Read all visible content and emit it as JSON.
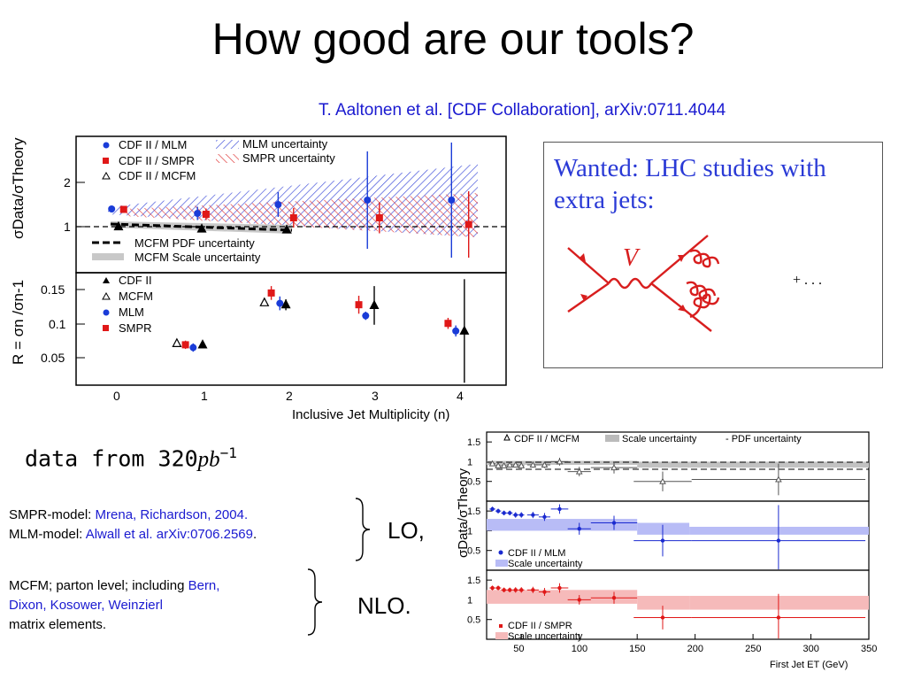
{
  "slide": {
    "title": "How good are our tools?",
    "citation": "T. Aaltonen et al. [CDF Collaboration], arXiv:0711.4044"
  },
  "wanted": {
    "text": "Wanted: LHC studies with extra jets:",
    "boson_label": "V",
    "more": "+ . . ."
  },
  "data_note": {
    "prefix": "data from 320",
    "unit": "pb",
    "exponent": "−1"
  },
  "models": {
    "smpr_label": "SMPR-model: ",
    "smpr_ref": "Mrena, Richardson, 2004.",
    "mlm_label": "MLM-model: ",
    "mlm_ref": "Alwall et al. arXiv:0706.2569",
    "mlm_end": ".",
    "lo": "LO,",
    "mcfm_label": "MCFM; parton level; including ",
    "mcfm_ref_1": "Bern,",
    "mcfm_ref_2": "Dixon, Kosower, Weinzierl",
    "mcfm_end": "matrix elements.",
    "nlo": "NLO."
  },
  "chart_data": [
    {
      "type": "scatter",
      "panel": "top",
      "ylabel": "σData/σTheory",
      "xlim": [
        -0.4,
        4.4
      ],
      "ylim": [
        0.2,
        2.9
      ],
      "yticks": [
        1,
        2
      ],
      "x": [
        0,
        1,
        2,
        3,
        4
      ],
      "reference_line": 1,
      "legend": [
        "CDF II / MLM",
        "CDF II / SMPR",
        "CDF II / MCFM",
        "MLM uncertainty",
        "SMPR uncertainty",
        "MCFM PDF uncertainty",
        "MCFM Scale uncertainty"
      ],
      "series": [
        {
          "name": "CDF II / MLM",
          "color": "#1a3cd8",
          "x": [
            -0.06,
            0.94,
            1.88,
            2.92,
            3.9
          ],
          "y": [
            1.4,
            1.3,
            1.5,
            1.6,
            1.6
          ],
          "err": [
            0.05,
            0.15,
            0.28,
            1.1,
            1.3
          ]
        },
        {
          "name": "CDF II / SMPR",
          "color": "#e01818",
          "x": [
            0.08,
            1.04,
            2.06,
            3.06,
            4.1
          ],
          "y": [
            1.39,
            1.28,
            1.2,
            1.2,
            1.05
          ],
          "err": [
            0.05,
            0.13,
            0.22,
            0.35,
            0.75
          ]
        },
        {
          "name": "CDF II / MCFM",
          "color": "#000000",
          "x": [
            0.02,
            0.99,
            1.98
          ],
          "y": [
            1.0,
            0.95,
            0.93
          ],
          "err": [
            0.03,
            0.05,
            0.05
          ]
        }
      ]
    },
    {
      "type": "scatter",
      "panel": "bottom",
      "ylabel": "R = σn /σn-1",
      "xlabel": "Inclusive Jet Multiplicity (n)",
      "xlim": [
        -0.4,
        4.4
      ],
      "ylim": [
        0.01,
        0.175
      ],
      "yticks": [
        0.05,
        0.1,
        0.15
      ],
      "xticks": [
        0,
        1,
        2,
        3,
        4
      ],
      "legend": [
        "CDF II",
        "MCFM",
        "MLM",
        "SMPR"
      ],
      "series": [
        {
          "name": "CDF II",
          "color": "#000000",
          "x": [
            1.0,
            1.97,
            3.0,
            4.05
          ],
          "y": [
            0.07,
            0.128,
            0.127,
            0.09
          ],
          "err": [
            0.005,
            0.008,
            0.028,
            0.075
          ]
        },
        {
          "name": "MCFM",
          "color": "#000000",
          "open": true,
          "x": [
            0.7,
            1.72
          ],
          "y": [
            0.072,
            0.131
          ],
          "err": [
            0,
            0
          ]
        },
        {
          "name": "MLM",
          "color": "#1a3cd8",
          "x": [
            0.89,
            1.9,
            2.9,
            3.95
          ],
          "y": [
            0.066,
            0.13,
            0.112,
            0.09
          ],
          "err": [
            0.006,
            0.01,
            0.006,
            0.008
          ]
        },
        {
          "name": "SMPR",
          "color": "#e01818",
          "x": [
            0.8,
            1.8,
            2.82,
            3.86
          ],
          "y": [
            0.07,
            0.145,
            0.128,
            0.101
          ],
          "err": [
            0.006,
            0.01,
            0.013,
            0.008
          ]
        }
      ]
    },
    {
      "type": "scatter",
      "panel": "right-1",
      "ylabel": "σData/σTheory",
      "xlim": [
        20,
        350
      ],
      "ylim": [
        0,
        1.75
      ],
      "yticks": [
        0.5,
        1,
        1.5
      ],
      "legend": [
        "CDF II / MCFM",
        "Scale uncertainty",
        "- PDF uncertainty"
      ],
      "series": [
        {
          "name": "CDF II / MCFM",
          "color": "#555555",
          "open": true,
          "x": [
            25,
            30,
            35,
            40,
            45,
            50,
            60,
            70,
            83,
            100,
            130,
            172,
            272
          ],
          "y": [
            0.95,
            0.9,
            0.9,
            0.92,
            0.92,
            0.9,
            0.92,
            0.92,
            1.0,
            0.75,
            0.85,
            0.5,
            0.55
          ],
          "err": [
            0.05,
            0.05,
            0.05,
            0.06,
            0.06,
            0.06,
            0.07,
            0.08,
            0.1,
            0.12,
            0.15,
            0.25,
            0.4
          ]
        }
      ]
    },
    {
      "type": "scatter",
      "panel": "right-2",
      "xlim": [
        20,
        350
      ],
      "ylim": [
        0,
        1.75
      ],
      "yticks": [
        0.5,
        1,
        1.5
      ],
      "legend": [
        "CDF II / MLM",
        "Scale uncertainty"
      ],
      "series": [
        {
          "name": "CDF II / MLM",
          "color": "#1a2ad0",
          "x": [
            25,
            30,
            35,
            40,
            45,
            50,
            60,
            70,
            83,
            100,
            130,
            172,
            272
          ],
          "y": [
            1.55,
            1.5,
            1.45,
            1.45,
            1.4,
            1.4,
            1.4,
            1.35,
            1.55,
            1.05,
            1.2,
            0.75,
            0.75
          ],
          "err": [
            0.06,
            0.06,
            0.06,
            0.06,
            0.07,
            0.07,
            0.08,
            0.1,
            0.12,
            0.15,
            0.18,
            0.4,
            0.9
          ]
        }
      ]
    },
    {
      "type": "scatter",
      "panel": "right-3",
      "xlabel": "First Jet ET (GeV)",
      "xlim": [
        20,
        350
      ],
      "ylim": [
        0,
        1.75
      ],
      "yticks": [
        0.5,
        1,
        1.5
      ],
      "xticks": [
        50,
        100,
        150,
        200,
        250,
        300,
        350
      ],
      "legend": [
        "CDF II / SMPR",
        "Scale uncertainty"
      ],
      "series": [
        {
          "name": "CDF II / SMPR",
          "color": "#e01818",
          "x": [
            25,
            30,
            35,
            40,
            45,
            50,
            60,
            70,
            83,
            100,
            130,
            172,
            272
          ],
          "y": [
            1.3,
            1.3,
            1.25,
            1.25,
            1.25,
            1.25,
            1.25,
            1.2,
            1.3,
            1.0,
            1.05,
            0.55,
            0.55
          ],
          "err": [
            0.06,
            0.06,
            0.06,
            0.06,
            0.07,
            0.07,
            0.08,
            0.1,
            0.12,
            0.12,
            0.15,
            0.3,
            0.6
          ]
        }
      ]
    }
  ]
}
